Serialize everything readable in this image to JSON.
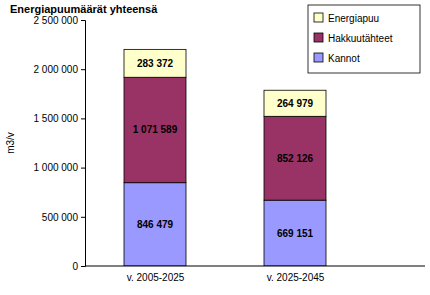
{
  "chart_data": {
    "type": "bar",
    "title": "Energiapuumäärät yhteensä",
    "y_label": "m3/v",
    "categories": [
      "v. 2005-2025",
      "v. 2025-2045"
    ],
    "series": [
      {
        "name": "Kannot",
        "color": "#9999ff",
        "values": [
          846479,
          669151
        ],
        "value_labels": [
          "846 479",
          "669 151"
        ]
      },
      {
        "name": "Hakkuutähteet",
        "color": "#993366",
        "values": [
          1071589,
          852126
        ],
        "value_labels": [
          "1 071 589",
          "852 126"
        ]
      },
      {
        "name": "Energiapuu",
        "color": "#ffffcc",
        "values": [
          283372,
          264979
        ],
        "value_labels": [
          "283 372",
          "264 979"
        ]
      }
    ],
    "stacked": true,
    "data_labels": true,
    "legend": "upper right",
    "grid": false,
    "ylim": [
      0,
      2500000
    ],
    "yticks": [
      0,
      {
        "value": 500000,
        "label": "500 000"
      },
      {
        "value": 1000000,
        "label": "1 000 000"
      },
      {
        "value": 1500000,
        "label": "1 500 000"
      },
      {
        "value": 2000000,
        "label": "2 000 000"
      },
      {
        "value": 2500000,
        "label": "2 500 000"
      }
    ]
  }
}
